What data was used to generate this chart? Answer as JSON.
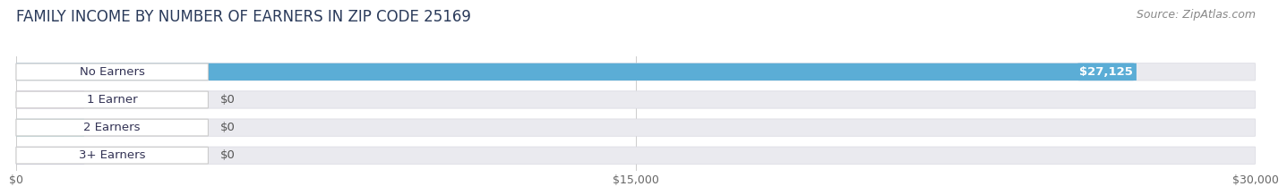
{
  "title": "FAMILY INCOME BY NUMBER OF EARNERS IN ZIP CODE 25169",
  "source": "Source: ZipAtlas.com",
  "categories": [
    "No Earners",
    "1 Earner",
    "2 Earners",
    "3+ Earners"
  ],
  "values": [
    27125,
    0,
    0,
    0
  ],
  "bar_colors": [
    "#5badd6",
    "#c9a8c8",
    "#5bbcb0",
    "#9898cc"
  ],
  "value_labels": [
    "$27,125",
    "$0",
    "$0",
    "$0"
  ],
  "xlim": [
    0,
    30000
  ],
  "xticks": [
    0,
    15000,
    30000
  ],
  "xtick_labels": [
    "$0",
    "$15,000",
    "$30,000"
  ],
  "bar_height": 0.62,
  "background_color": "#ffffff",
  "bar_background_color": "#eaeaef",
  "title_fontsize": 12,
  "source_fontsize": 9,
  "label_fontsize": 9.5,
  "tick_fontsize": 9,
  "title_color": "#2a3a5a",
  "source_color": "#888888"
}
